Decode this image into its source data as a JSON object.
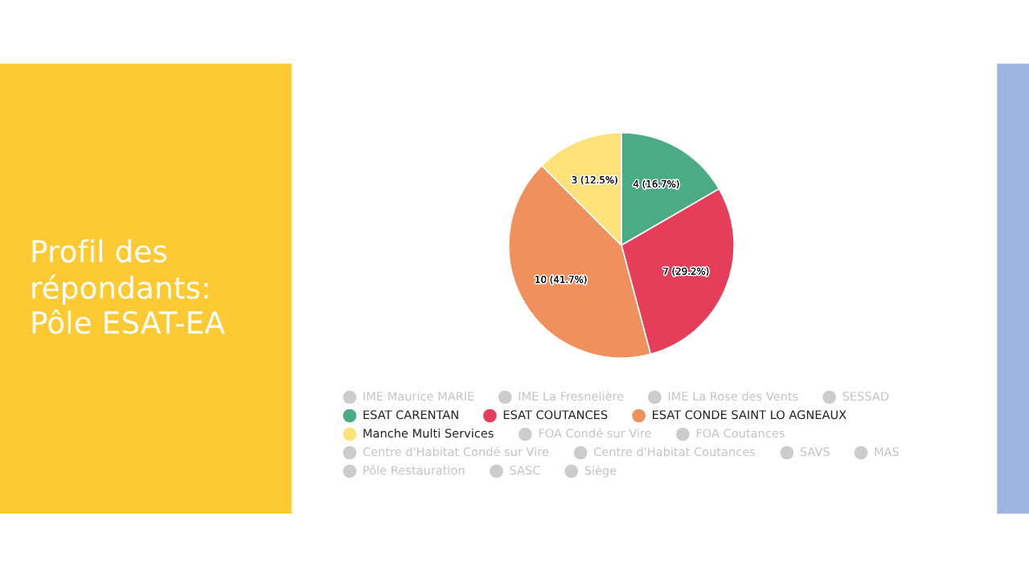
{
  "chart_data": {
    "type": "pie",
    "title": "Profil des répondants: Pôle ESAT-EA",
    "categories": [
      "IME Maurice MARIE",
      "IME La Fresnelière",
      "IME La Rose des Vents",
      "SESSAD",
      "ESAT CARENTAN",
      "ESAT COUTANCES",
      "ESAT CONDE SAINT LO AGNEAUX",
      "Manche Multi Services",
      "FOA Condé sur Vire",
      "FOA Coutances",
      "Centre d'Habitat Condé sur Vire",
      "Centre d'Habitat Coutances",
      "SAVS",
      "MAS",
      "Pôle Restauration",
      "SASC",
      "Siège"
    ],
    "values": [
      null,
      null,
      null,
      null,
      4,
      7,
      10,
      3,
      null,
      null,
      null,
      null,
      null,
      null,
      null,
      null,
      null
    ],
    "value_labels": [
      null,
      null,
      null,
      null,
      "4 (16.7%)",
      "7 (29.2%)",
      "10 (41.7%)",
      "3 (12.5%)",
      null,
      null,
      null,
      null,
      null,
      null,
      null,
      null,
      null
    ],
    "colors": [
      "#cccccc",
      "#cccccc",
      "#cccccc",
      "#cccccc",
      "#4aab84",
      "#e63e5a",
      "#f0905c",
      "#fde27a",
      "#cccccc",
      "#cccccc",
      "#cccccc",
      "#cccccc",
      "#cccccc",
      "#cccccc",
      "#cccccc",
      "#cccccc",
      "#cccccc"
    ],
    "legend": "bottom"
  }
}
